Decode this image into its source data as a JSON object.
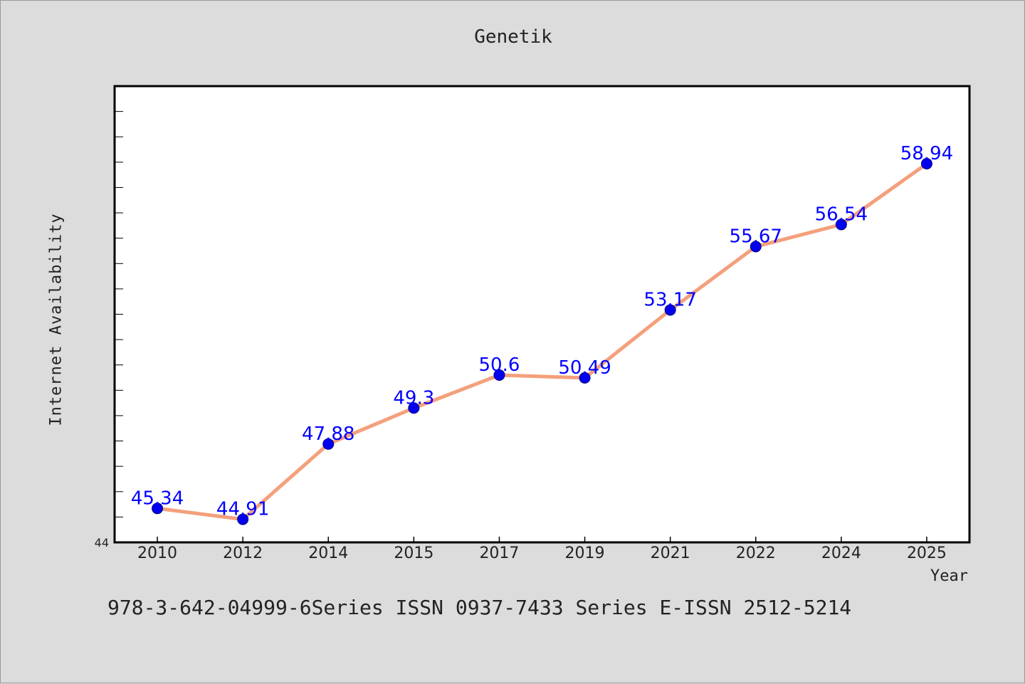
{
  "chart_data": {
    "type": "line",
    "title": "Genetik",
    "xlabel": "Year",
    "ylabel": "Internet Availability",
    "categories": [
      "2010",
      "2012",
      "2014",
      "2015",
      "2017",
      "2019",
      "2021",
      "2022",
      "2024",
      "2025"
    ],
    "series": [
      {
        "values": [
          45.34,
          44.91,
          47.88,
          49.3,
          50.6,
          50.49,
          53.17,
          55.67,
          56.54,
          58.94
        ],
        "data_labels": [
          "45.34",
          "44.91",
          "47.88",
          "49.3",
          "50.6",
          "50.49",
          "53.17",
          "55.67",
          "56.54",
          "58.94"
        ]
      }
    ],
    "ylim": [
      44,
      62
    ],
    "y_min_label": "44",
    "y_minor_tick_step": 1,
    "grid": false,
    "legend": "none",
    "colors": {
      "line": "#f4a07c",
      "marker": "#0000ee",
      "marker_edge": "#000080",
      "data_label": "#0000ff",
      "plot_background": "#ffffff",
      "figure_background": "#dcdcdc"
    }
  },
  "footer": {
    "text": "978-3-642-04999-6Series ISSN 0937-7433 Series E-ISSN 2512-5214"
  }
}
